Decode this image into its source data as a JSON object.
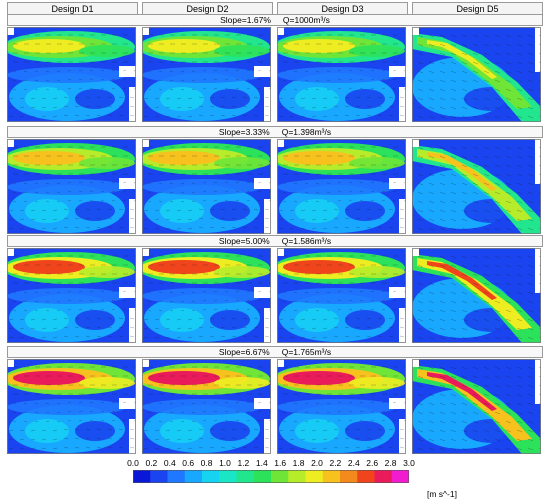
{
  "columns": [
    "Design D1",
    "Design D2",
    "Design D3",
    "Design D5"
  ],
  "rows": [
    {
      "slope": "Slope=1.67%",
      "flow": "Q=1000m³/s",
      "intensity": 0.35
    },
    {
      "slope": "Slope=3.33%",
      "flow": "Q=1.398m³/s",
      "intensity": 0.55
    },
    {
      "slope": "Slope=5.00%",
      "flow": "Q=1.586m³/s",
      "intensity": 0.75
    },
    {
      "slope": "Slope=6.67%",
      "flow": "Q=1.765m³/s",
      "intensity": 0.95
    }
  ],
  "colorbar": {
    "ticks": [
      "0.0",
      "0.2",
      "0.4",
      "0.6",
      "0.8",
      "1.0",
      "1.2",
      "1.4",
      "1.6",
      "1.8",
      "2.0",
      "2.2",
      "2.4",
      "2.6",
      "2.8",
      "3.0"
    ],
    "unit": "[m s^-1]",
    "colors": [
      "#0b17d6",
      "#1a44f0",
      "#1f78ff",
      "#18a8ff",
      "#17d3f2",
      "#19e6c4",
      "#21e68d",
      "#2ce25a",
      "#6fe637",
      "#b7ec2a",
      "#eded22",
      "#f7c11e",
      "#f58a1c",
      "#f0451c",
      "#ea1b5a",
      "#f11ccf"
    ]
  }
}
